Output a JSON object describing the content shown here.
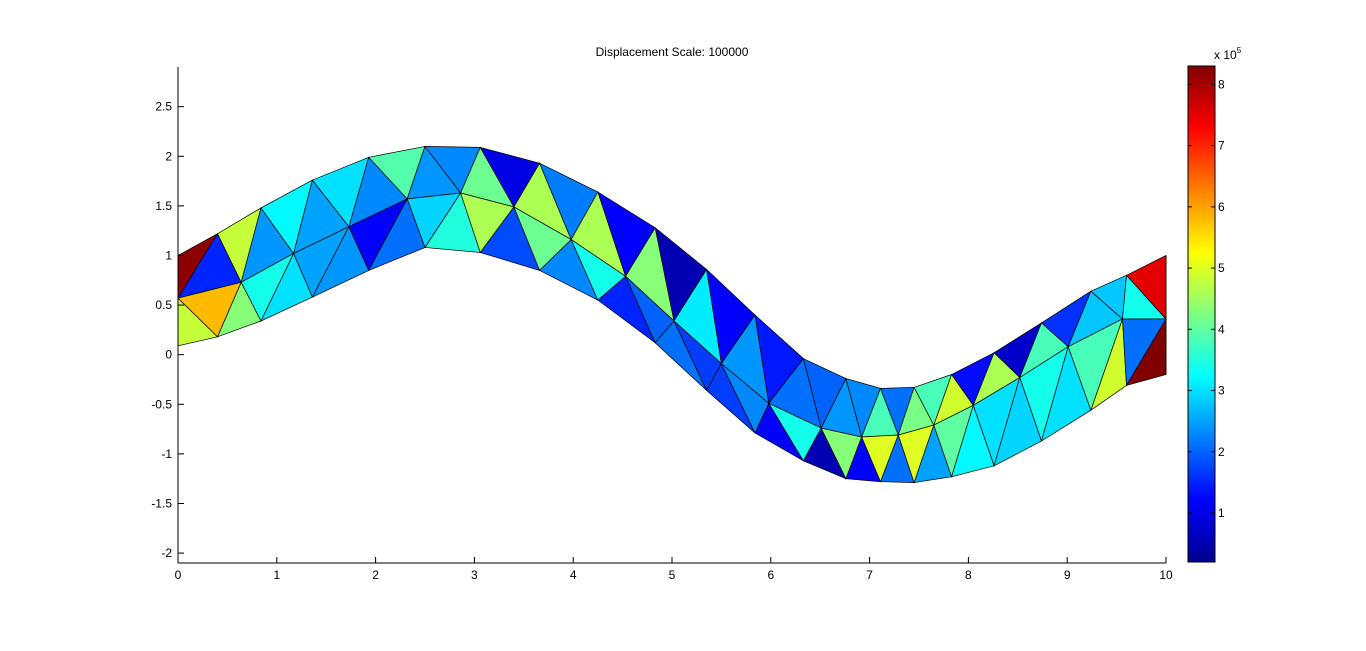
{
  "chart_data": {
    "type": "heatmap",
    "title": "Displacement Scale: 100000",
    "xlabel": "",
    "ylabel": "",
    "xlim": [
      0,
      10
    ],
    "ylim": [
      -2.1,
      2.9
    ],
    "x_ticks": [
      0,
      1,
      2,
      3,
      4,
      5,
      6,
      7,
      8,
      9,
      10
    ],
    "y_ticks": [
      -2,
      -1.5,
      -1,
      -0.5,
      0,
      0.5,
      1,
      1.5,
      2,
      2.5
    ],
    "colorbar": {
      "colormap": "jet",
      "range": [
        0.2,
        8.3
      ],
      "ticks": [
        1,
        2,
        3,
        4,
        5,
        6,
        7,
        8
      ],
      "multiplier_label": "x 10",
      "multiplier_exponent": "5"
    },
    "mesh": {
      "top_nodes": [
        [
          0,
          1.0
        ],
        [
          0.4,
          1.22
        ],
        [
          0.84,
          1.48
        ],
        [
          1.36,
          1.76
        ],
        [
          1.93,
          1.99
        ],
        [
          2.5,
          2.1
        ],
        [
          3.06,
          2.09
        ],
        [
          3.66,
          1.93
        ],
        [
          4.25,
          1.64
        ],
        [
          4.83,
          1.28
        ],
        [
          5.35,
          0.86
        ],
        [
          5.84,
          0.4
        ],
        [
          6.33,
          -0.04
        ],
        [
          6.76,
          -0.24
        ],
        [
          7.11,
          -0.34
        ],
        [
          7.45,
          -0.33
        ],
        [
          7.83,
          -0.2
        ],
        [
          8.26,
          0.02
        ],
        [
          8.74,
          0.32
        ],
        [
          9.24,
          0.64
        ],
        [
          9.6,
          0.8
        ],
        [
          10,
          1.0
        ]
      ],
      "mid_nodes": [
        [
          0,
          0.57
        ],
        [
          0.64,
          0.73
        ],
        [
          1.17,
          1.02
        ],
        [
          1.73,
          1.29
        ],
        [
          2.32,
          1.57
        ],
        [
          2.86,
          1.63
        ],
        [
          3.4,
          1.49
        ],
        [
          3.98,
          1.16
        ],
        [
          4.53,
          0.79
        ],
        [
          5.02,
          0.34
        ],
        [
          5.5,
          -0.09
        ],
        [
          5.98,
          -0.49
        ],
        [
          6.51,
          -0.74
        ],
        [
          6.92,
          -0.83
        ],
        [
          7.29,
          -0.81
        ],
        [
          7.65,
          -0.71
        ],
        [
          8.05,
          -0.51
        ],
        [
          8.52,
          -0.23
        ],
        [
          9.01,
          0.08
        ],
        [
          9.56,
          0.36
        ],
        [
          10,
          0.36
        ]
      ],
      "bot_nodes": [
        [
          0,
          0.09
        ],
        [
          0.4,
          0.18
        ],
        [
          0.84,
          0.34
        ],
        [
          1.36,
          0.58
        ],
        [
          1.93,
          0.85
        ],
        [
          2.5,
          1.08
        ],
        [
          3.06,
          1.03
        ],
        [
          3.66,
          0.85
        ],
        [
          4.25,
          0.55
        ],
        [
          4.83,
          0.12
        ],
        [
          5.35,
          -0.36
        ],
        [
          5.84,
          -0.79
        ],
        [
          6.33,
          -1.07
        ],
        [
          6.76,
          -1.25
        ],
        [
          7.11,
          -1.28
        ],
        [
          7.45,
          -1.29
        ],
        [
          7.83,
          -1.23
        ],
        [
          8.26,
          -1.12
        ],
        [
          8.74,
          -0.87
        ],
        [
          9.24,
          -0.56
        ],
        [
          9.6,
          -0.31
        ],
        [
          10,
          -0.2
        ]
      ],
      "top_band_values": [
        8.2,
        1.5,
        4.8,
        2.4,
        3.2,
        2.5,
        3.0,
        2.3,
        3.9,
        2.4,
        2.3,
        4.1,
        1.0,
        4.6,
        2.2,
        4.6,
        1.2,
        4.3,
        0.6,
        3.1,
        1.2,
        2.4,
        1.4,
        2.1,
        2.0,
        2.4,
        2.3,
        3.8,
        2.1,
        4.2,
        3.8,
        4.9,
        1.3,
        4.6,
        0.8,
        3.8,
        1.6,
        2.8,
        2.8,
        3.4,
        7.5
      ],
      "bottom_band_values": [
        4.8,
        5.8,
        4.3,
        3.4,
        3.0,
        2.5,
        2.4,
        1.2,
        2.1,
        2.9,
        3.5,
        4.6,
        1.8,
        4.1,
        2.3,
        3.4,
        1.5,
        2.0,
        2.1,
        1.7,
        1.7,
        2.3,
        1.2,
        3.4,
        0.6,
        4.3,
        1.2,
        5.0,
        2.1,
        5.0,
        2.5,
        4.0,
        3.2,
        3.0,
        2.9,
        3.4,
        3.0,
        3.8,
        4.9,
        2.1,
        8.3
      ]
    }
  }
}
